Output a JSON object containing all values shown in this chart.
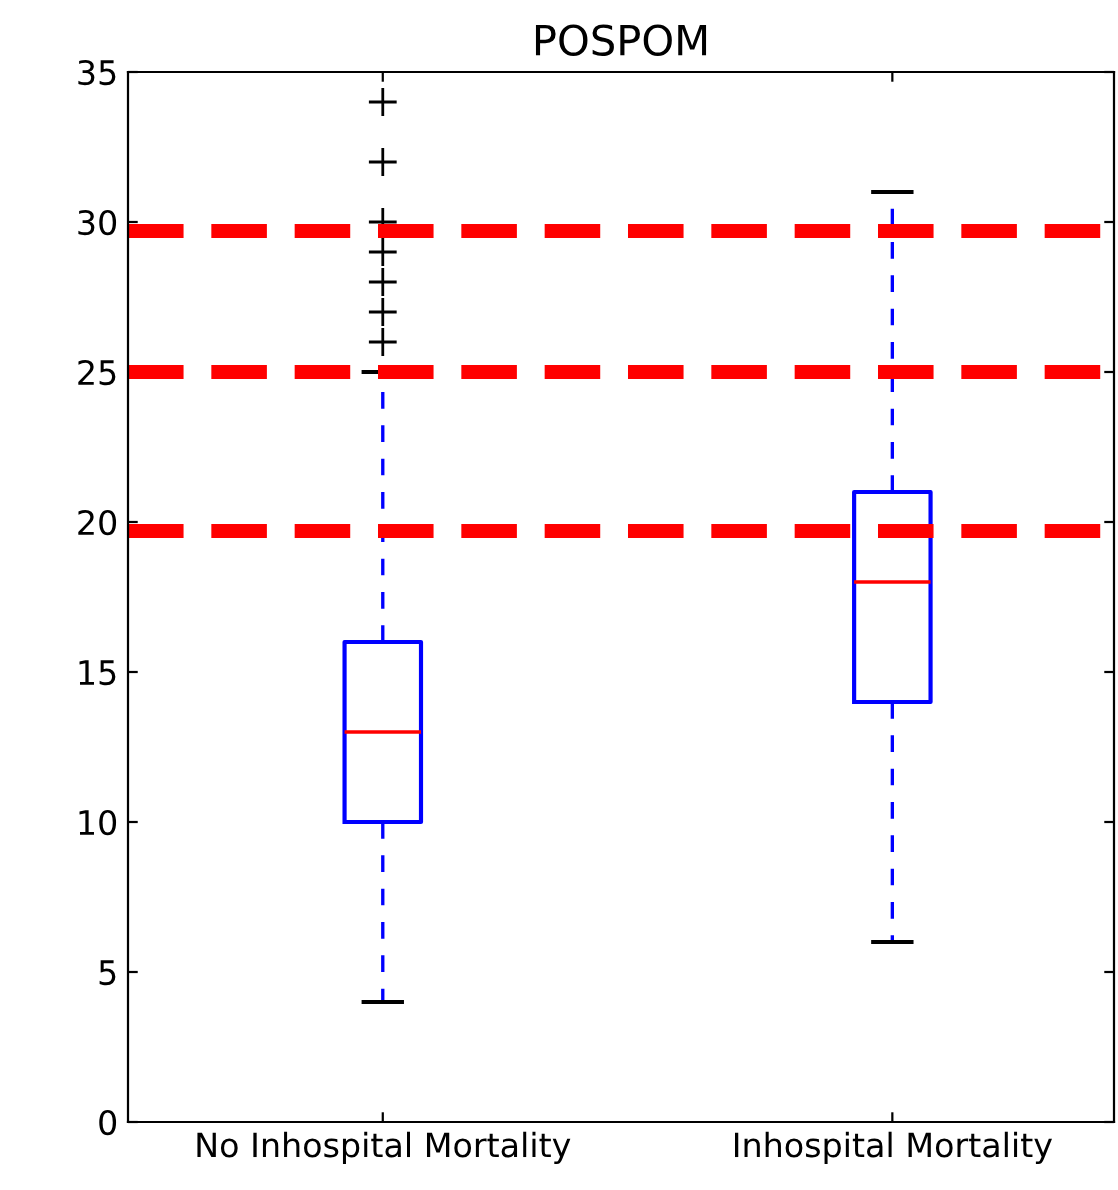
{
  "chart_data": {
    "type": "box",
    "title": "POSPOM",
    "categories": [
      "No Inhospital Mortality",
      "Inhospital Mortality"
    ],
    "boxes": [
      {
        "low": 4,
        "q1": 10,
        "median": 13,
        "q3": 16,
        "high": 25,
        "outliers": [
          26,
          27,
          28,
          29,
          30,
          32,
          34
        ]
      },
      {
        "low": 6,
        "q1": 14,
        "median": 18,
        "q3": 21,
        "high": 31
      }
    ],
    "color": "#0000ff",
    "ylim": [
      0,
      35
    ],
    "yticks": [
      0,
      5,
      10,
      15,
      20,
      25,
      30,
      35
    ],
    "grid": false,
    "ref_lines": [
      {
        "axis": "y",
        "value": 29.7,
        "color": "#ff0000",
        "line_style": "dashed"
      },
      {
        "axis": "y",
        "value": 25,
        "color": "#ff0000",
        "line_style": "dashed"
      },
      {
        "axis": "y",
        "value": 19.7,
        "color": "#ff0000",
        "line_style": "dashed"
      }
    ]
  }
}
